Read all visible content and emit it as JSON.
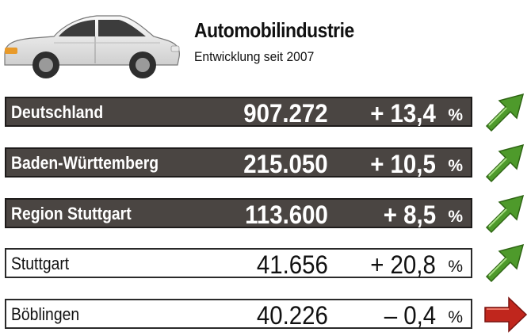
{
  "header": {
    "title": "Automobilindustrie",
    "subtitle": "Entwicklung seit 2007"
  },
  "rows": [
    {
      "label": "Deutschland",
      "value": "907.272",
      "change": "+ 13,4",
      "unit": "%",
      "trend": "up",
      "trend_color": "#4e9a2b"
    },
    {
      "label": "Baden-Württemberg",
      "value": "215.050",
      "change": "+ 10,5",
      "unit": "%",
      "trend": "up",
      "trend_color": "#4e9a2b"
    },
    {
      "label": "Region Stuttgart",
      "value": "113.600",
      "change": "+ 8,5",
      "unit": "%",
      "trend": "up",
      "trend_color": "#4e9a2b"
    },
    {
      "label": "Stuttgart",
      "value": "41.656",
      "change": "+ 20,8",
      "unit": "%",
      "trend": "up",
      "trend_color": "#4e9a2b"
    },
    {
      "label": "Böblingen",
      "value": "40.226",
      "change": "– 0,4",
      "unit": "%",
      "trend": "right",
      "trend_color": "#c0261d"
    }
  ],
  "icons": {
    "car": "car-icon",
    "up": "arrow-up-right-icon",
    "right": "arrow-right-icon"
  },
  "colors": {
    "dark_row_background": "#4a4542",
    "light_row_background": "#ffffff",
    "up_arrow": "#4e9a2b",
    "right_arrow": "#c0261d"
  }
}
